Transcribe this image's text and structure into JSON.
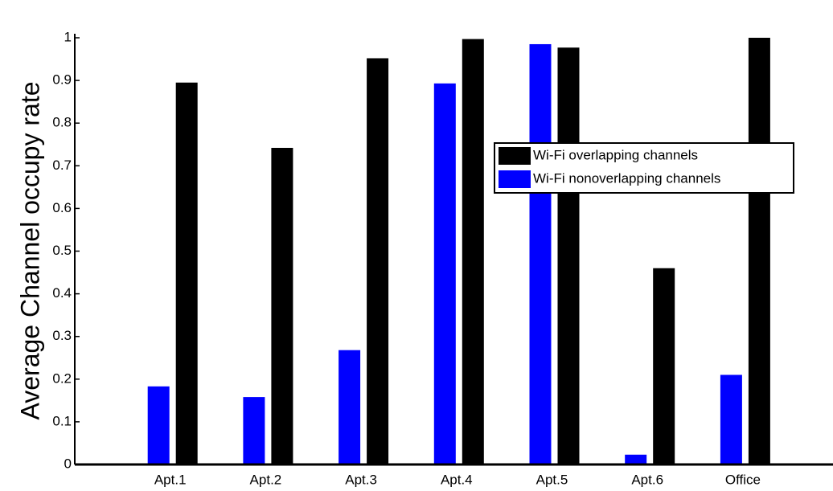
{
  "chart_data": {
    "type": "bar",
    "ylabel": "Average Channel occupy rate",
    "categories": [
      "Apt.1",
      "Apt.2",
      "Apt.3",
      "Apt.4",
      "Apt.5",
      "Apt.6",
      "Office"
    ],
    "series": [
      {
        "name": "Wi-Fi overlapping channels",
        "color": "#000000",
        "values": [
          0.895,
          0.742,
          0.952,
          0.997,
          0.977,
          0.46,
          1.0
        ]
      },
      {
        "name": "Wi-Fi nonoverlapping channels",
        "color": "#0000ff",
        "values": [
          0.183,
          0.158,
          0.268,
          0.893,
          0.985,
          0.023,
          0.21
        ]
      }
    ],
    "ylim": [
      0,
      1
    ],
    "yticks": [
      0,
      0.1,
      0.2,
      0.3,
      0.4,
      0.5,
      0.6,
      0.7,
      0.8,
      0.9,
      1
    ],
    "legend": "right"
  }
}
